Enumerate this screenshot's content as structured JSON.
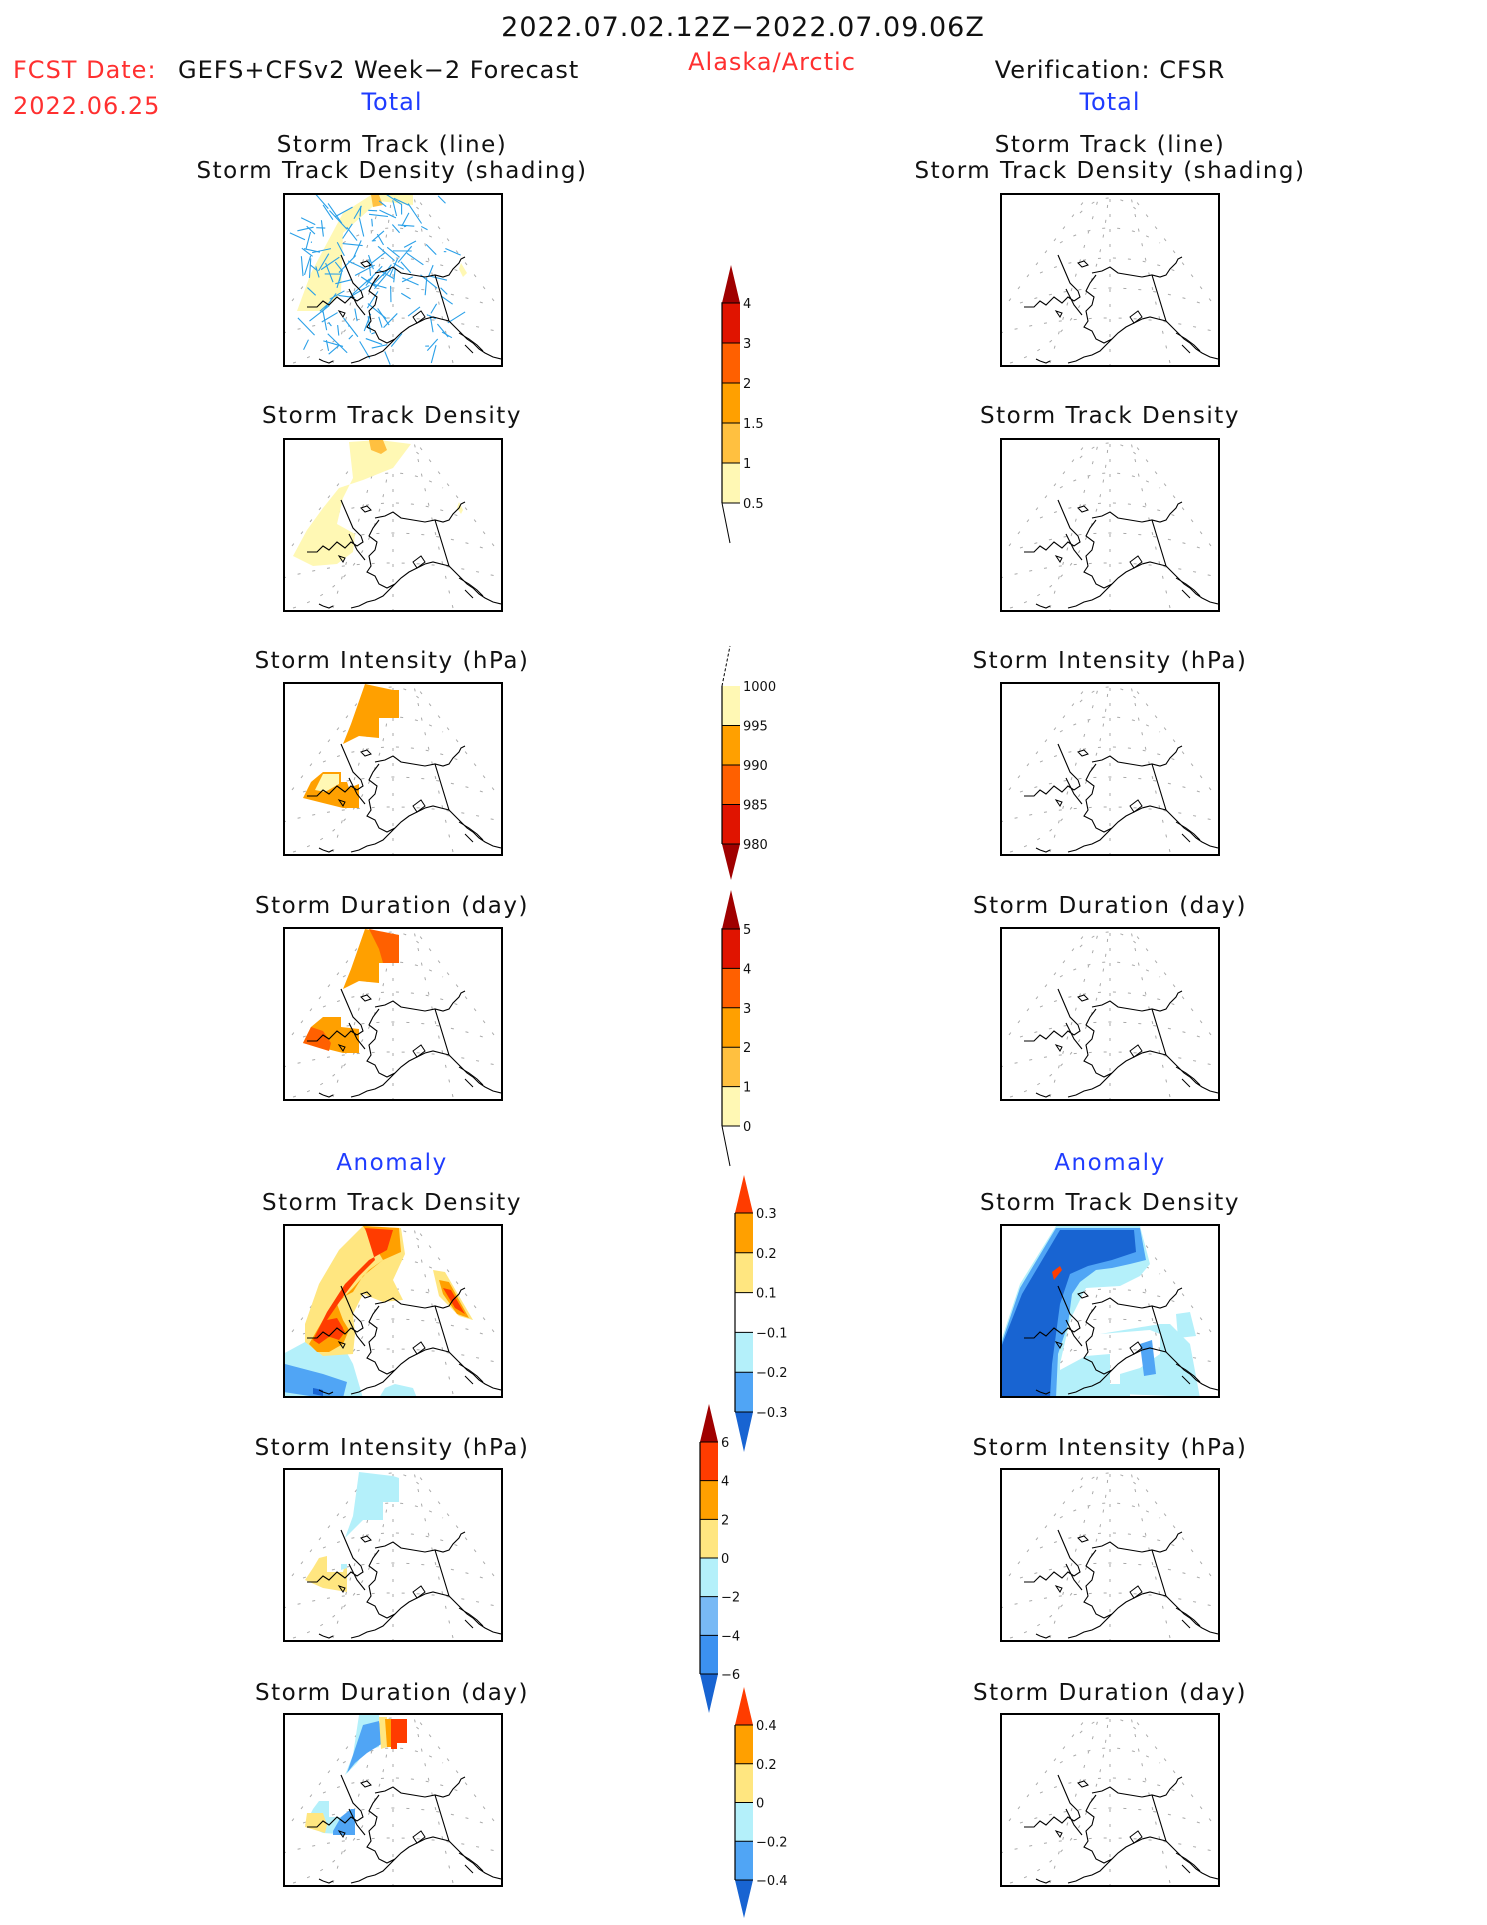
{
  "header": {
    "period": "2022.07.02.12Z−2022.07.09.06Z",
    "fcst_label": "FCST Date:",
    "fcst_model": "GEFS+CFSv2 Week−2 Forecast",
    "fcst_date": "2022.06.25",
    "region": "Alaska/Arctic",
    "verification": "Verification: CFSR",
    "left_section": "Total",
    "right_section": "Total",
    "left_anomaly": "Anomaly",
    "right_anomaly": "Anomaly"
  },
  "colors": {
    "title_red": "#ff3030",
    "section_blue": "#1f3cff",
    "track_line": "#2aa0e8"
  },
  "panels": {
    "total": [
      {
        "title_line1": "Storm Track (line)",
        "title_line2": "Storm Track Density (shading)"
      },
      {
        "title_line1": "Storm Track Density"
      },
      {
        "title_line1": "Storm Intensity (hPa)"
      },
      {
        "title_line1": "Storm Duration (day)"
      }
    ],
    "anomaly": [
      {
        "title_line1": "Storm Track Density"
      },
      {
        "title_line1": "Storm Intensity (hPa)"
      },
      {
        "title_line1": "Storm Duration (day)"
      }
    ]
  },
  "chart_data": [
    {
      "type": "heatmap",
      "title": "Storm Track Density (total)",
      "colorbar": {
        "levels": [
          "0.5",
          "1",
          "1.5",
          "2",
          "3",
          "4"
        ],
        "colors": [
          "#fff8b4",
          "#ffc040",
          "#ffa000",
          "#ff6000",
          "#e01400",
          "#a00000"
        ],
        "extend": "both"
      }
    },
    {
      "type": "heatmap",
      "title": "Storm Intensity (hPa) (total)",
      "colorbar": {
        "levels": [
          "1000",
          "995",
          "990",
          "985",
          "980"
        ],
        "colors": [
          "#fff8b4",
          "#ffa000",
          "#ff6000",
          "#e01400",
          "#a00000"
        ],
        "extend": "min"
      }
    },
    {
      "type": "heatmap",
      "title": "Storm Duration (day) (total)",
      "colorbar": {
        "levels": [
          "0",
          "1",
          "2",
          "3",
          "4",
          "5"
        ],
        "colors": [
          "#fff8b4",
          "#ffc040",
          "#ffa000",
          "#ff6000",
          "#e01400",
          "#a00000"
        ],
        "extend": "both"
      }
    },
    {
      "type": "heatmap",
      "title": "Storm Track Density (anomaly)",
      "colorbar": {
        "levels": [
          "0.3",
          "0.2",
          "0.1",
          "−0.1",
          "−0.2",
          "−0.3"
        ],
        "colors": [
          "#ff3c00",
          "#ffa000",
          "#ffe680",
          "#ffffff",
          "#b4f0fa",
          "#50a5f5",
          "#1864d2"
        ],
        "extend": "both"
      }
    },
    {
      "type": "heatmap",
      "title": "Storm Intensity (hPa) (anomaly)",
      "colorbar": {
        "levels": [
          "6",
          "4",
          "2",
          "0",
          "−2",
          "−4",
          "−6"
        ],
        "colors": [
          "#a00000",
          "#ff3c00",
          "#ffa000",
          "#ffe680",
          "#b4f0fa",
          "#78b9f5",
          "#3c91f0",
          "#1864d2"
        ],
        "extend": "both"
      }
    },
    {
      "type": "heatmap",
      "title": "Storm Duration (day) (anomaly)",
      "colorbar": {
        "levels": [
          "0.4",
          "0.2",
          "0",
          "−0.2",
          "−0.4"
        ],
        "colors": [
          "#ff3c00",
          "#ffa000",
          "#ffe680",
          "#b4f0fa",
          "#50a5f5",
          "#1864d2"
        ],
        "extend": "both"
      }
    }
  ]
}
